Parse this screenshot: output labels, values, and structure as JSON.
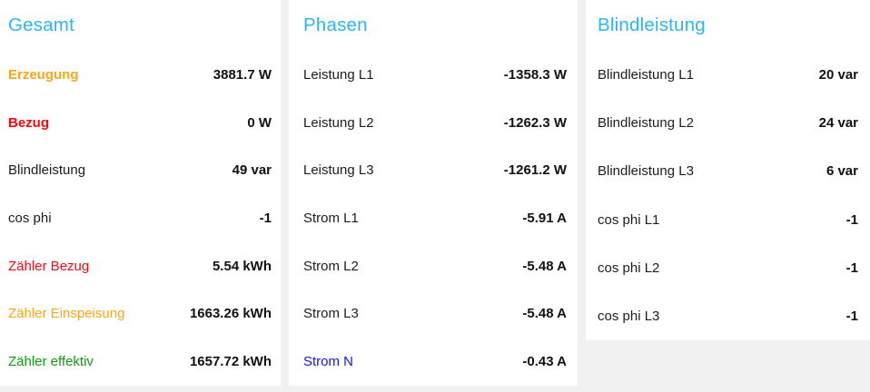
{
  "theme": {
    "card_background": "#ffffff",
    "page_background": "#f1f1f2",
    "title_color": "#29b6f6",
    "value_color": "#111111",
    "label_color_default": "#1c1c1c",
    "label_color_orange": "#ffa515",
    "label_color_red": "#fb0511",
    "label_color_green": "#0b9c0b",
    "label_color_blue": "#1412ff"
  },
  "cards": [
    {
      "title": "Gesamt",
      "rows": [
        {
          "label": "Erzeugung",
          "value": "3881.7 W",
          "label_color": "orange",
          "label_bold": true
        },
        {
          "label": "Bezug",
          "value": "0 W",
          "label_color": "red",
          "label_bold": true
        },
        {
          "label": "Blindleistung",
          "value": "49 var"
        },
        {
          "label": "cos phi",
          "value": "-1"
        },
        {
          "label": "Zähler Bezug",
          "value": "5.54 kWh",
          "label_color": "red"
        },
        {
          "label": "Zähler Einspeisung",
          "value": "1663.26 kWh",
          "label_color": "orange"
        },
        {
          "label": "Zähler effektiv",
          "value": "1657.72 kWh",
          "label_color": "green"
        }
      ]
    },
    {
      "title": "Phasen",
      "rows": [
        {
          "label": "Leistung L1",
          "value": "-1358.3 W"
        },
        {
          "label": "Leistung L2",
          "value": "-1262.3 W"
        },
        {
          "label": "Leistung L3",
          "value": "-1261.2 W"
        },
        {
          "label": "Strom L1",
          "value": "-5.91 A"
        },
        {
          "label": "Strom L2",
          "value": "-5.48 A"
        },
        {
          "label": "Strom L3",
          "value": "-5.48 A"
        },
        {
          "label": "Strom N",
          "value": "-0.43 A",
          "label_color": "blue"
        }
      ]
    },
    {
      "title": "Blindleistung",
      "rows": [
        {
          "label": "Blindleistung L1",
          "value": "20 var"
        },
        {
          "label": "Blindleistung L2",
          "value": "24 var"
        },
        {
          "label": "Blindleistung L3",
          "value": "6 var"
        },
        {
          "label": "cos phi L1",
          "value": "-1"
        },
        {
          "label": "cos phi L2",
          "value": "-1"
        },
        {
          "label": "cos phi L3",
          "value": "-1"
        }
      ]
    }
  ]
}
